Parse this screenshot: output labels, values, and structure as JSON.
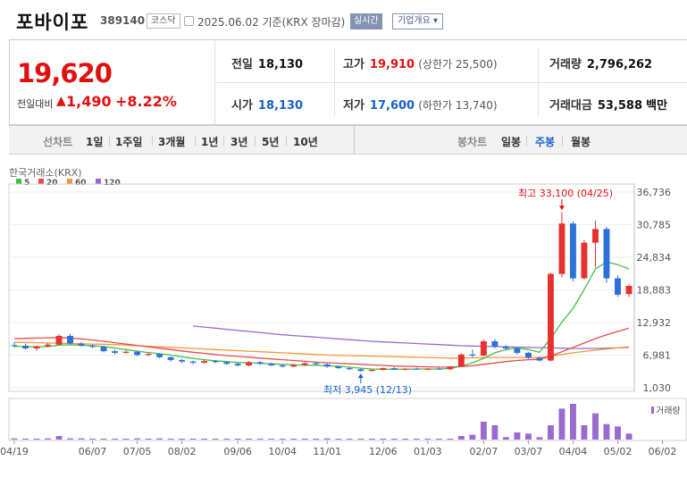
{
  "header": {
    "name": "포바이포",
    "code": "389140",
    "market": "코스닥",
    "date": "2025.06.02 기준(KRX 장마감)",
    "realtime_label": "실시간",
    "company_label": "기업개요 ▾"
  },
  "quote": {
    "price": "19,620",
    "diff_label": "전일대비",
    "diff_arrow": "▲",
    "diff": "1,490",
    "diff_pct": "+8.22%",
    "prev_label": "전일",
    "prev": "18,130",
    "high_label": "고가",
    "high": "19,910",
    "high_limit": "(상한가 25,500)",
    "volume_label": "거래량",
    "volume": "2,796,262",
    "open_label": "시가",
    "open": "18,130",
    "low_label": "저가",
    "low": "17,600",
    "low_limit": "(하한가 13,740)",
    "amount_label": "거래대금",
    "amount": "53,588",
    "amount_unit": "백만"
  },
  "toolbar": {
    "line_label": "선차트",
    "periods": [
      "1일",
      "1주일",
      "3개월",
      "1년",
      "3년",
      "5년",
      "10년"
    ],
    "candle_label": "봉차트",
    "candle_types": [
      "일봉",
      "주봉",
      "월봉"
    ],
    "active_candle": "주봉"
  },
  "chart_data": {
    "type": "candlestick",
    "source_label": "한국거래소(KRX)",
    "legend": [
      {
        "name": "5",
        "color": "#44c044"
      },
      {
        "name": "20",
        "color": "#e84b4b"
      },
      {
        "name": "60",
        "color": "#f0993a"
      },
      {
        "name": "120",
        "color": "#9a6ad0"
      }
    ],
    "y_ticks": [
      36736,
      30785,
      24834,
      18883,
      12932,
      6981,
      1030
    ],
    "y_tick_labels": [
      "36,736",
      "30,785",
      "24,834",
      "18,883",
      "12,932",
      "6,981",
      "1,030"
    ],
    "ylim": [
      1030,
      36736
    ],
    "x_tick_labels": [
      "04/19",
      "06/07",
      "07/05",
      "08/02",
      "09/06",
      "10/04",
      "11/01",
      "12/06",
      "01/03",
      "02/07",
      "03/07",
      "04/04",
      "05/02",
      "06/02"
    ],
    "x_tick_index": [
      0,
      7,
      11,
      15,
      20,
      24,
      28,
      33,
      37,
      42,
      46,
      50,
      54,
      58
    ],
    "max_label": "최고 33,100 (04/25)",
    "min_label": "최저 3,945 (12/13)",
    "volume_label": "거래량",
    "candles": [
      [
        8800,
        9300,
        8300,
        8700
      ],
      [
        8700,
        9100,
        8000,
        8200
      ],
      [
        8200,
        8700,
        7800,
        8600
      ],
      [
        8600,
        9200,
        8400,
        8900
      ],
      [
        8900,
        10800,
        8700,
        10500
      ],
      [
        10500,
        10900,
        8900,
        9100
      ],
      [
        9100,
        9400,
        8500,
        8700
      ],
      [
        8700,
        9000,
        8200,
        8500
      ],
      [
        8500,
        8700,
        7500,
        7700
      ],
      [
        7700,
        8000,
        7100,
        7400
      ],
      [
        7400,
        7900,
        7200,
        7600
      ],
      [
        7600,
        7800,
        6800,
        7000
      ],
      [
        7000,
        7500,
        6800,
        7200
      ],
      [
        7200,
        7300,
        6400,
        6600
      ],
      [
        6600,
        6800,
        5800,
        6100
      ],
      [
        6100,
        6300,
        5500,
        5800
      ],
      [
        5800,
        6000,
        5300,
        5600
      ],
      [
        5600,
        6200,
        5400,
        5900
      ],
      [
        5900,
        6100,
        5500,
        5700
      ],
      [
        5700,
        5900,
        5200,
        5400
      ],
      [
        5400,
        5600,
        4900,
        5100
      ],
      [
        5100,
        5900,
        4900,
        5700
      ],
      [
        5700,
        5900,
        5200,
        5400
      ],
      [
        5400,
        5600,
        5000,
        5100
      ],
      [
        5100,
        5300,
        4700,
        4900
      ],
      [
        4900,
        5400,
        4800,
        5200
      ],
      [
        5200,
        5700,
        5000,
        5500
      ],
      [
        5500,
        5800,
        5100,
        5300
      ],
      [
        5300,
        5500,
        4700,
        4900
      ],
      [
        4900,
        5100,
        4500,
        4600
      ],
      [
        4600,
        4800,
        4300,
        4400
      ],
      [
        4400,
        4600,
        3945,
        4100
      ],
      [
        4100,
        4400,
        3950,
        4300
      ],
      [
        4300,
        4700,
        4200,
        4600
      ],
      [
        4600,
        4800,
        4300,
        4400
      ],
      [
        4400,
        4600,
        4200,
        4500
      ],
      [
        4500,
        4700,
        4300,
        4400
      ],
      [
        4400,
        4600,
        4200,
        4500
      ],
      [
        4500,
        4700,
        4300,
        4400
      ],
      [
        4400,
        5000,
        4300,
        4900
      ],
      [
        4900,
        7300,
        4800,
        7100
      ],
      [
        7100,
        8000,
        6500,
        6900
      ],
      [
        6900,
        9800,
        6800,
        9500
      ],
      [
        9500,
        9900,
        8200,
        8500
      ],
      [
        8500,
        8800,
        7900,
        8200
      ],
      [
        8200,
        8400,
        7100,
        7400
      ],
      [
        7400,
        7600,
        6300,
        6500
      ],
      [
        6500,
        6700,
        5800,
        6000
      ],
      [
        6000,
        22000,
        5800,
        21800
      ],
      [
        21800,
        33100,
        21200,
        31000
      ],
      [
        31000,
        31400,
        20400,
        21000
      ],
      [
        21000,
        28000,
        20800,
        27500
      ],
      [
        27500,
        31500,
        23000,
        30000
      ],
      [
        30000,
        30400,
        20200,
        21000
      ],
      [
        21000,
        21500,
        17600,
        18000
      ],
      [
        18130,
        19910,
        17600,
        19620
      ]
    ],
    "ma5": [
      8600,
      8550,
      8500,
      8550,
      8800,
      8850,
      8800,
      8700,
      8550,
      8300,
      8000,
      7700,
      7450,
      7250,
      7000,
      6700,
      6400,
      6150,
      5950,
      5800,
      5650,
      5600,
      5500,
      5400,
      5300,
      5200,
      5150,
      5100,
      5050,
      4950,
      4800,
      4600,
      4450,
      4400,
      4400,
      4400,
      4450,
      4450,
      4450,
      4550,
      5000,
      5600,
      6400,
      7400,
      8000,
      8300,
      8000,
      7500,
      10000,
      13000,
      15500,
      19000,
      22700,
      24000,
      23500,
      22700
    ],
    "ma20": [
      10000,
      10050,
      10100,
      10150,
      10200,
      10100,
      9950,
      9750,
      9500,
      9250,
      9000,
      8750,
      8500,
      8250,
      8000,
      7750,
      7500,
      7300,
      7100,
      6900,
      6750,
      6600,
      6450,
      6300,
      6150,
      6000,
      5850,
      5700,
      5600,
      5500,
      5400,
      5300,
      5200,
      5100,
      5000,
      4950,
      4900,
      4850,
      4800,
      4800,
      4900,
      5050,
      5300,
      5550,
      5800,
      6000,
      6150,
      6200,
      6800,
      7600,
      8400,
      9200,
      10000,
      10700,
      11300,
      11900
    ],
    "ma60": [
      9300,
      9300,
      9250,
      9200,
      9150,
      9100,
      9050,
      9000,
      8950,
      8900,
      8800,
      8700,
      8600,
      8500,
      8400,
      8300,
      8200,
      8100,
      8000,
      7900,
      7800,
      7700,
      7600,
      7500,
      7400,
      7300,
      7200,
      7100,
      7000,
      6950,
      6900,
      6850,
      6800,
      6750,
      6700,
      6650,
      6600,
      6550,
      6500,
      6450,
      6450,
      6500,
      6550,
      6550,
      6550,
      6550,
      6550,
      6550,
      6800,
      7100,
      7400,
      7650,
      7900,
      8100,
      8300,
      8500
    ],
    "ma120_start": 16,
    "ma120": [
      12300,
      12100,
      11900,
      11700,
      11500,
      11300,
      11100,
      10900,
      10700,
      10550,
      10400,
      10250,
      10100,
      9950,
      9800,
      9650,
      9500,
      9400,
      9300,
      9200,
      9100,
      9000,
      8900,
      8800,
      8700,
      8650,
      8600,
      8550,
      8500,
      8450,
      8400,
      8350,
      8300,
      8250,
      8200,
      8200,
      8200,
      8250,
      8300,
      8400
    ],
    "volumes": [
      1,
      0,
      0,
      1,
      3,
      1,
      1,
      0,
      0,
      0,
      0,
      1,
      0,
      1,
      0,
      0,
      0,
      0,
      0,
      0,
      0,
      0,
      0,
      0,
      0,
      0,
      0,
      0,
      1,
      0,
      0,
      0,
      0,
      0,
      0,
      0,
      0,
      0,
      0,
      0,
      3,
      4,
      15,
      12,
      2,
      6,
      5,
      2,
      12,
      26,
      30,
      12,
      22,
      13,
      11,
      5
    ]
  }
}
